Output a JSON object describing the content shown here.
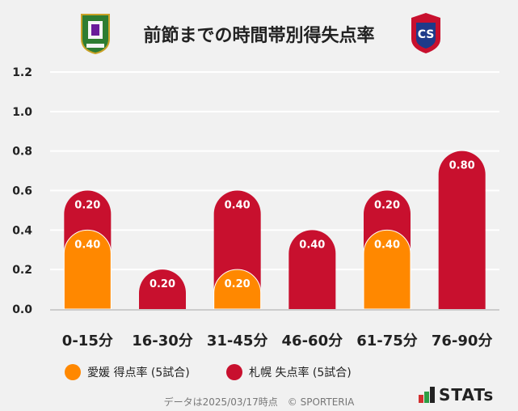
{
  "title": "前節までの時間帯別得失点率",
  "teams": {
    "home_logo": "愛媛FC crest",
    "away_logo": "北海道コンサドーレ札幌 crest"
  },
  "chart_data": {
    "type": "bar",
    "stacked": true,
    "categories": [
      "0-15分",
      "16-30分",
      "31-45分",
      "46-60分",
      "61-75分",
      "76-90分"
    ],
    "series": [
      {
        "name": "愛媛 得点率 (5試合)",
        "color": "#ff8800",
        "values": [
          0.4,
          0,
          0.2,
          0,
          0.4,
          0
        ],
        "labels": [
          "0.40",
          "",
          "0.20",
          "",
          "0.40",
          ""
        ]
      },
      {
        "name": "札幌 失点率 (5試合)",
        "color": "#c8102e",
        "values": [
          0.2,
          0.2,
          0.4,
          0.4,
          0.2,
          0.8
        ],
        "labels": [
          "0.20",
          "0.20",
          "0.40",
          "0.40",
          "0.20",
          "0.80"
        ]
      }
    ],
    "ylim": [
      0,
      1.2
    ],
    "yticks": [
      "0.0",
      "0.2",
      "0.4",
      "0.6",
      "0.8",
      "1.0",
      "1.2"
    ],
    "grid": true,
    "legend_position": "bottom"
  },
  "footer": "データは2025/03/17時点　© SPORTERIA",
  "brand": "STATs"
}
